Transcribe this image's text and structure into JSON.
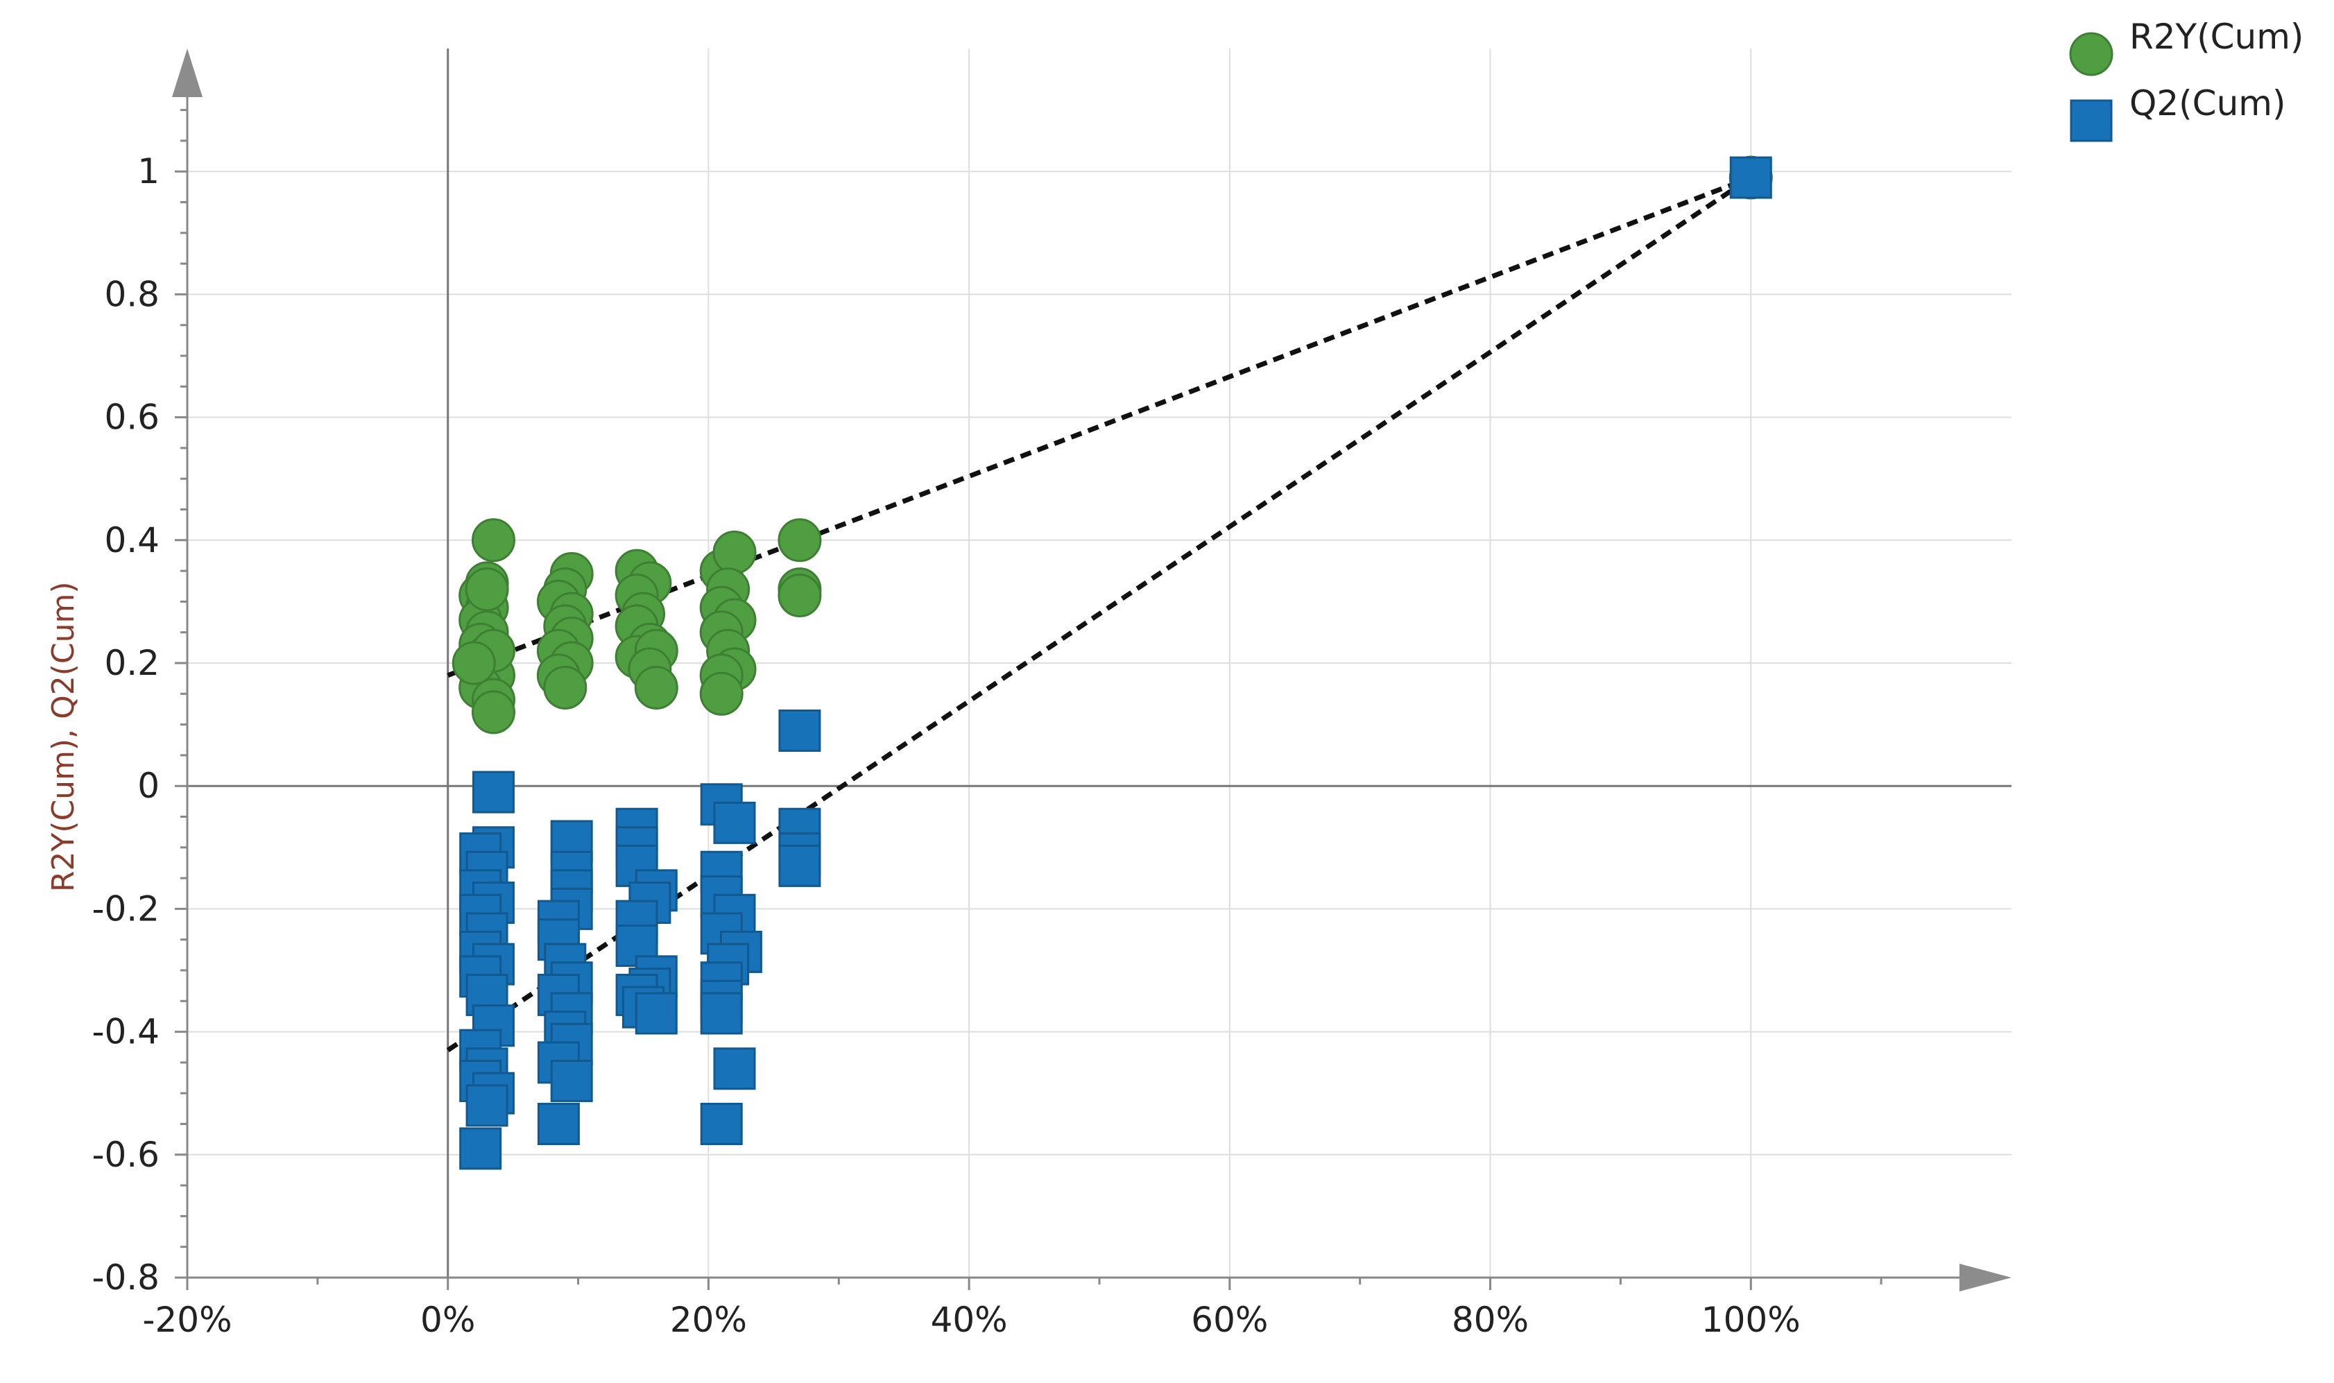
{
  "chart_data": {
    "type": "scatter",
    "title": "",
    "xlabel": "",
    "ylabel": "R2Y(Cum), Q2(Cum)",
    "xlim": [
      -20,
      120
    ],
    "ylim": [
      -0.8,
      1.2
    ],
    "x_ticks": [
      {
        "value": -20,
        "label": "-20%"
      },
      {
        "value": 0,
        "label": "0%"
      },
      {
        "value": 20,
        "label": "20%"
      },
      {
        "value": 40,
        "label": "40%"
      },
      {
        "value": 60,
        "label": "60%"
      },
      {
        "value": 80,
        "label": "80%"
      },
      {
        "value": 100,
        "label": "100%"
      }
    ],
    "y_ticks": [
      {
        "value": 1,
        "label": "1"
      },
      {
        "value": 0.8,
        "label": "0.8"
      },
      {
        "value": 0.6,
        "label": "0.6"
      },
      {
        "value": 0.4,
        "label": "0.4"
      },
      {
        "value": 0.2,
        "label": "0.2"
      },
      {
        "value": 0,
        "label": "0"
      },
      {
        "value": -0.2,
        "label": "-0.2"
      },
      {
        "value": -0.4,
        "label": "-0.4"
      },
      {
        "value": -0.6,
        "label": "-0.6"
      },
      {
        "value": -0.8,
        "label": "-0.8"
      }
    ],
    "grid": true,
    "legend_position": "top-right",
    "series": [
      {
        "name": "R2Y(Cum)",
        "marker": "circle",
        "color": "#4f9e41",
        "edge_color": "#3e7f34",
        "points": [
          [
            3.5,
            0.4
          ],
          [
            3.0,
            0.33
          ],
          [
            2.5,
            0.31
          ],
          [
            3.0,
            0.29
          ],
          [
            2.5,
            0.27
          ],
          [
            3.0,
            0.25
          ],
          [
            2.5,
            0.23
          ],
          [
            3.0,
            0.21
          ],
          [
            2.5,
            0.19
          ],
          [
            3.5,
            0.18
          ],
          [
            2.5,
            0.16
          ],
          [
            3.5,
            0.14
          ],
          [
            3.5,
            0.12
          ],
          [
            3.0,
            0.32
          ],
          [
            3.5,
            0.22
          ],
          [
            2.0,
            0.2
          ],
          [
            9.5,
            0.345
          ],
          [
            9.0,
            0.32
          ],
          [
            8.5,
            0.3
          ],
          [
            9.5,
            0.28
          ],
          [
            9.0,
            0.26
          ],
          [
            9.5,
            0.24
          ],
          [
            8.5,
            0.22
          ],
          [
            9.5,
            0.2
          ],
          [
            8.5,
            0.18
          ],
          [
            9.0,
            0.16
          ],
          [
            14.5,
            0.35
          ],
          [
            15.5,
            0.33
          ],
          [
            14.5,
            0.31
          ],
          [
            15.0,
            0.28
          ],
          [
            14.5,
            0.26
          ],
          [
            15.5,
            0.23
          ],
          [
            14.5,
            0.21
          ],
          [
            16.0,
            0.22
          ],
          [
            15.5,
            0.19
          ],
          [
            16.0,
            0.16
          ],
          [
            21.0,
            0.35
          ],
          [
            22.0,
            0.38
          ],
          [
            21.5,
            0.32
          ],
          [
            21.0,
            0.29
          ],
          [
            22.0,
            0.27
          ],
          [
            21.0,
            0.25
          ],
          [
            21.5,
            0.22
          ],
          [
            22.0,
            0.19
          ],
          [
            21.0,
            0.18
          ],
          [
            21.0,
            0.15
          ],
          [
            27.0,
            0.4
          ],
          [
            27.0,
            0.32
          ],
          [
            27.0,
            0.31
          ],
          [
            100.0,
            0.99
          ]
        ]
      },
      {
        "name": "Q2(Cum)",
        "marker": "square",
        "color": "#1872b8",
        "edge_color": "#12598f",
        "points": [
          [
            3.5,
            -0.01
          ],
          [
            3.5,
            -0.1
          ],
          [
            2.5,
            -0.11
          ],
          [
            3.0,
            -0.14
          ],
          [
            2.5,
            -0.17
          ],
          [
            3.5,
            -0.19
          ],
          [
            2.5,
            -0.21
          ],
          [
            3.0,
            -0.24
          ],
          [
            2.5,
            -0.27
          ],
          [
            3.5,
            -0.29
          ],
          [
            2.5,
            -0.31
          ],
          [
            3.0,
            -0.34
          ],
          [
            3.5,
            -0.39
          ],
          [
            2.5,
            -0.43
          ],
          [
            3.0,
            -0.46
          ],
          [
            2.5,
            -0.48
          ],
          [
            3.5,
            -0.5
          ],
          [
            3.0,
            -0.52
          ],
          [
            2.5,
            -0.59
          ],
          [
            9.5,
            -0.09
          ],
          [
            9.5,
            -0.14
          ],
          [
            9.5,
            -0.17
          ],
          [
            9.5,
            -0.2
          ],
          [
            8.5,
            -0.22
          ],
          [
            8.5,
            -0.25
          ],
          [
            9.0,
            -0.29
          ],
          [
            9.5,
            -0.32
          ],
          [
            8.5,
            -0.34
          ],
          [
            9.5,
            -0.37
          ],
          [
            9.0,
            -0.4
          ],
          [
            9.5,
            -0.42
          ],
          [
            8.5,
            -0.45
          ],
          [
            9.5,
            -0.48
          ],
          [
            8.5,
            -0.55
          ],
          [
            14.5,
            -0.07
          ],
          [
            14.5,
            -0.1
          ],
          [
            14.5,
            -0.13
          ],
          [
            16.0,
            -0.17
          ],
          [
            15.5,
            -0.19
          ],
          [
            14.5,
            -0.22
          ],
          [
            14.5,
            -0.26
          ],
          [
            16.0,
            -0.31
          ],
          [
            15.5,
            -0.33
          ],
          [
            14.5,
            -0.34
          ],
          [
            15.0,
            -0.36
          ],
          [
            16.0,
            -0.37
          ],
          [
            21.0,
            -0.03
          ],
          [
            22.0,
            -0.06
          ],
          [
            21.0,
            -0.14
          ],
          [
            21.0,
            -0.18
          ],
          [
            22.0,
            -0.21
          ],
          [
            21.0,
            -0.24
          ],
          [
            22.5,
            -0.27
          ],
          [
            21.5,
            -0.29
          ],
          [
            21.0,
            -0.32
          ],
          [
            21.0,
            -0.35
          ],
          [
            21.0,
            -0.37
          ],
          [
            22.0,
            -0.46
          ],
          [
            21.0,
            -0.55
          ],
          [
            27.0,
            0.09
          ],
          [
            27.0,
            -0.07
          ],
          [
            27.0,
            -0.11
          ],
          [
            27.0,
            -0.13
          ],
          [
            100.0,
            0.99
          ]
        ]
      }
    ],
    "trend_lines": [
      {
        "series": "R2Y(Cum)",
        "from": [
          0,
          0.18
        ],
        "to": [
          100,
          0.99
        ],
        "style": "dashed",
        "color": "#111111"
      },
      {
        "series": "Q2(Cum)",
        "from": [
          0,
          -0.43
        ],
        "to": [
          100,
          0.99
        ],
        "style": "dashed",
        "color": "#111111"
      }
    ]
  }
}
